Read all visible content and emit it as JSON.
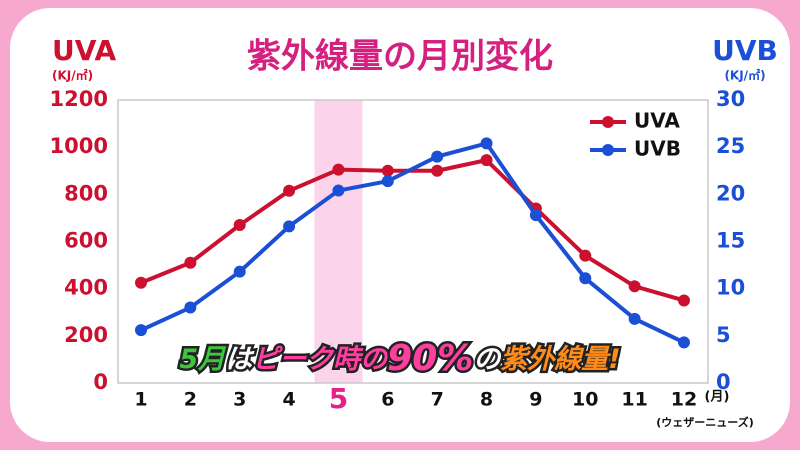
{
  "chart_data": {
    "type": "line",
    "title": "紫外線量の月別変化",
    "y_label": "UVA",
    "y_unit": "(KJ/㎡)",
    "y2_label": "UVB",
    "y2_unit": "(KJ/㎡)",
    "x_unit": "(月)",
    "source": "(ウェザーニューズ)",
    "annotation_parts": [
      "5月",
      "は",
      "ピーク時の",
      "90%",
      "の",
      "紫外線量!"
    ],
    "annotation_colors": [
      "#3cc63c",
      "#ffffff",
      "#ff3fa0",
      "#ff3fa0",
      "#ffffff",
      "#ff8c1a"
    ],
    "highlight": "5",
    "highlight_color": "#fbd3ea",
    "categories": [
      "1",
      "2",
      "3",
      "4",
      "5",
      "6",
      "7",
      "8",
      "9",
      "10",
      "11",
      "12"
    ],
    "series": [
      {
        "name": "UVA",
        "color": "#cc1030",
        "axis": "y",
        "values": [
          425,
          510,
          670,
          815,
          905,
          900,
          900,
          945,
          740,
          540,
          410,
          350
        ]
      },
      {
        "name": "UVB",
        "color": "#1a4fd6",
        "axis": "y2",
        "values": [
          5.6,
          8.0,
          11.8,
          16.6,
          20.4,
          21.4,
          24.0,
          25.4,
          17.8,
          11.1,
          6.8,
          4.3
        ]
      }
    ],
    "ylim": [
      0,
      1200
    ],
    "yticks": [
      0,
      200,
      400,
      600,
      800,
      1000,
      1200
    ],
    "y2lim": [
      0,
      30
    ],
    "y2ticks": [
      0,
      5,
      10,
      15,
      20,
      25,
      30
    ],
    "legend": "top-right",
    "grid": false
  }
}
